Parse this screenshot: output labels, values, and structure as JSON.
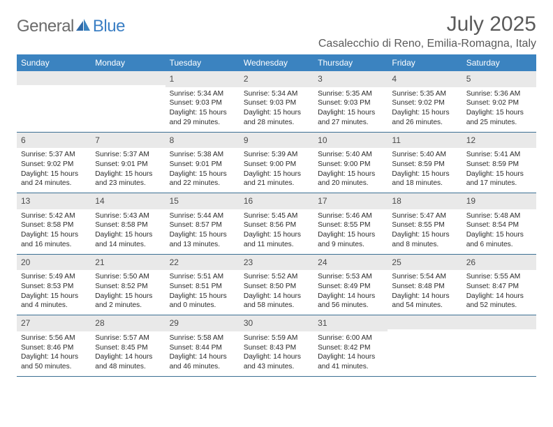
{
  "brand": {
    "part1": "General",
    "part2": "Blue"
  },
  "title": "July 2025",
  "location": "Casalecchio di Reno, Emilia-Romagna, Italy",
  "colors": {
    "header_bg": "#3b83c0",
    "header_text": "#ffffff",
    "daynum_bg": "#e9e9e9",
    "rule": "#3b6f93",
    "text": "#2a2a2a",
    "title_text": "#5a5a5a",
    "brand_gray": "#6b6b6b",
    "brand_blue": "#3b7fc4"
  },
  "weekdays": [
    "Sunday",
    "Monday",
    "Tuesday",
    "Wednesday",
    "Thursday",
    "Friday",
    "Saturday"
  ],
  "weeks": [
    [
      {
        "n": "",
        "sr": "",
        "ss": "",
        "dl1": "",
        "dl2": ""
      },
      {
        "n": "",
        "sr": "",
        "ss": "",
        "dl1": "",
        "dl2": ""
      },
      {
        "n": "1",
        "sr": "Sunrise: 5:34 AM",
        "ss": "Sunset: 9:03 PM",
        "dl1": "Daylight: 15 hours",
        "dl2": "and 29 minutes."
      },
      {
        "n": "2",
        "sr": "Sunrise: 5:34 AM",
        "ss": "Sunset: 9:03 PM",
        "dl1": "Daylight: 15 hours",
        "dl2": "and 28 minutes."
      },
      {
        "n": "3",
        "sr": "Sunrise: 5:35 AM",
        "ss": "Sunset: 9:03 PM",
        "dl1": "Daylight: 15 hours",
        "dl2": "and 27 minutes."
      },
      {
        "n": "4",
        "sr": "Sunrise: 5:35 AM",
        "ss": "Sunset: 9:02 PM",
        "dl1": "Daylight: 15 hours",
        "dl2": "and 26 minutes."
      },
      {
        "n": "5",
        "sr": "Sunrise: 5:36 AM",
        "ss": "Sunset: 9:02 PM",
        "dl1": "Daylight: 15 hours",
        "dl2": "and 25 minutes."
      }
    ],
    [
      {
        "n": "6",
        "sr": "Sunrise: 5:37 AM",
        "ss": "Sunset: 9:02 PM",
        "dl1": "Daylight: 15 hours",
        "dl2": "and 24 minutes."
      },
      {
        "n": "7",
        "sr": "Sunrise: 5:37 AM",
        "ss": "Sunset: 9:01 PM",
        "dl1": "Daylight: 15 hours",
        "dl2": "and 23 minutes."
      },
      {
        "n": "8",
        "sr": "Sunrise: 5:38 AM",
        "ss": "Sunset: 9:01 PM",
        "dl1": "Daylight: 15 hours",
        "dl2": "and 22 minutes."
      },
      {
        "n": "9",
        "sr": "Sunrise: 5:39 AM",
        "ss": "Sunset: 9:00 PM",
        "dl1": "Daylight: 15 hours",
        "dl2": "and 21 minutes."
      },
      {
        "n": "10",
        "sr": "Sunrise: 5:40 AM",
        "ss": "Sunset: 9:00 PM",
        "dl1": "Daylight: 15 hours",
        "dl2": "and 20 minutes."
      },
      {
        "n": "11",
        "sr": "Sunrise: 5:40 AM",
        "ss": "Sunset: 8:59 PM",
        "dl1": "Daylight: 15 hours",
        "dl2": "and 18 minutes."
      },
      {
        "n": "12",
        "sr": "Sunrise: 5:41 AM",
        "ss": "Sunset: 8:59 PM",
        "dl1": "Daylight: 15 hours",
        "dl2": "and 17 minutes."
      }
    ],
    [
      {
        "n": "13",
        "sr": "Sunrise: 5:42 AM",
        "ss": "Sunset: 8:58 PM",
        "dl1": "Daylight: 15 hours",
        "dl2": "and 16 minutes."
      },
      {
        "n": "14",
        "sr": "Sunrise: 5:43 AM",
        "ss": "Sunset: 8:58 PM",
        "dl1": "Daylight: 15 hours",
        "dl2": "and 14 minutes."
      },
      {
        "n": "15",
        "sr": "Sunrise: 5:44 AM",
        "ss": "Sunset: 8:57 PM",
        "dl1": "Daylight: 15 hours",
        "dl2": "and 13 minutes."
      },
      {
        "n": "16",
        "sr": "Sunrise: 5:45 AM",
        "ss": "Sunset: 8:56 PM",
        "dl1": "Daylight: 15 hours",
        "dl2": "and 11 minutes."
      },
      {
        "n": "17",
        "sr": "Sunrise: 5:46 AM",
        "ss": "Sunset: 8:55 PM",
        "dl1": "Daylight: 15 hours",
        "dl2": "and 9 minutes."
      },
      {
        "n": "18",
        "sr": "Sunrise: 5:47 AM",
        "ss": "Sunset: 8:55 PM",
        "dl1": "Daylight: 15 hours",
        "dl2": "and 8 minutes."
      },
      {
        "n": "19",
        "sr": "Sunrise: 5:48 AM",
        "ss": "Sunset: 8:54 PM",
        "dl1": "Daylight: 15 hours",
        "dl2": "and 6 minutes."
      }
    ],
    [
      {
        "n": "20",
        "sr": "Sunrise: 5:49 AM",
        "ss": "Sunset: 8:53 PM",
        "dl1": "Daylight: 15 hours",
        "dl2": "and 4 minutes."
      },
      {
        "n": "21",
        "sr": "Sunrise: 5:50 AM",
        "ss": "Sunset: 8:52 PM",
        "dl1": "Daylight: 15 hours",
        "dl2": "and 2 minutes."
      },
      {
        "n": "22",
        "sr": "Sunrise: 5:51 AM",
        "ss": "Sunset: 8:51 PM",
        "dl1": "Daylight: 15 hours",
        "dl2": "and 0 minutes."
      },
      {
        "n": "23",
        "sr": "Sunrise: 5:52 AM",
        "ss": "Sunset: 8:50 PM",
        "dl1": "Daylight: 14 hours",
        "dl2": "and 58 minutes."
      },
      {
        "n": "24",
        "sr": "Sunrise: 5:53 AM",
        "ss": "Sunset: 8:49 PM",
        "dl1": "Daylight: 14 hours",
        "dl2": "and 56 minutes."
      },
      {
        "n": "25",
        "sr": "Sunrise: 5:54 AM",
        "ss": "Sunset: 8:48 PM",
        "dl1": "Daylight: 14 hours",
        "dl2": "and 54 minutes."
      },
      {
        "n": "26",
        "sr": "Sunrise: 5:55 AM",
        "ss": "Sunset: 8:47 PM",
        "dl1": "Daylight: 14 hours",
        "dl2": "and 52 minutes."
      }
    ],
    [
      {
        "n": "27",
        "sr": "Sunrise: 5:56 AM",
        "ss": "Sunset: 8:46 PM",
        "dl1": "Daylight: 14 hours",
        "dl2": "and 50 minutes."
      },
      {
        "n": "28",
        "sr": "Sunrise: 5:57 AM",
        "ss": "Sunset: 8:45 PM",
        "dl1": "Daylight: 14 hours",
        "dl2": "and 48 minutes."
      },
      {
        "n": "29",
        "sr": "Sunrise: 5:58 AM",
        "ss": "Sunset: 8:44 PM",
        "dl1": "Daylight: 14 hours",
        "dl2": "and 46 minutes."
      },
      {
        "n": "30",
        "sr": "Sunrise: 5:59 AM",
        "ss": "Sunset: 8:43 PM",
        "dl1": "Daylight: 14 hours",
        "dl2": "and 43 minutes."
      },
      {
        "n": "31",
        "sr": "Sunrise: 6:00 AM",
        "ss": "Sunset: 8:42 PM",
        "dl1": "Daylight: 14 hours",
        "dl2": "and 41 minutes."
      },
      {
        "n": "",
        "sr": "",
        "ss": "",
        "dl1": "",
        "dl2": ""
      },
      {
        "n": "",
        "sr": "",
        "ss": "",
        "dl1": "",
        "dl2": ""
      }
    ]
  ]
}
